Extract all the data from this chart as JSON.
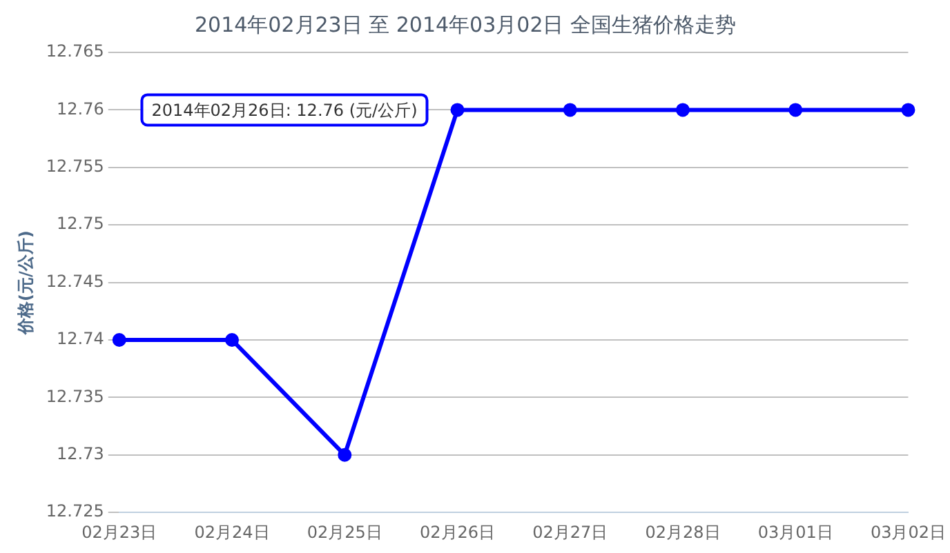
{
  "chart_data": {
    "type": "line",
    "title": "2014年02月23日 至 2014年03月02日 全国生猪价格走势",
    "ylabel": "价格(元/公斤)",
    "categories": [
      "02月23日",
      "02月24日",
      "02月25日",
      "02月26日",
      "02月27日",
      "02月28日",
      "03月01日",
      "03月02日"
    ],
    "series": [
      {
        "color": "#0000ff",
        "values": [
          12.74,
          12.74,
          12.73,
          12.76,
          12.76,
          12.76,
          12.76,
          12.76
        ]
      }
    ],
    "ylim": [
      12.725,
      12.765
    ],
    "yticks": [
      12.725,
      12.73,
      12.735,
      12.74,
      12.745,
      12.75,
      12.755,
      12.76,
      12.765
    ],
    "grid": "y",
    "legend": false,
    "marker": "circle",
    "line_style": "solid",
    "annotations": [
      {
        "text": "2014年02月26日: 12.76 (元/公斤)",
        "x": "02月26日",
        "y": 12.76
      }
    ]
  }
}
